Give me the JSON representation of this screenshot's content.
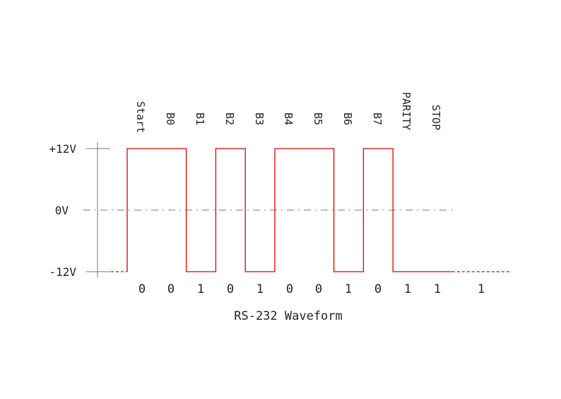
{
  "colors": {
    "signal": "#e00000",
    "axis": "#777777",
    "text": "#222222"
  },
  "diagram": {
    "caption": "RS-232 Waveform",
    "y_levels": [
      "+12V",
      "0V",
      "-12V"
    ],
    "frame_labels": [
      "Start",
      "B0",
      "B1",
      "B2",
      "B3",
      "B4",
      "B5",
      "B6",
      "B7",
      "PARITY",
      "STOP"
    ],
    "bit_values": [
      "0",
      "0",
      "1",
      "0",
      "1",
      "0",
      "0",
      "1",
      "0",
      "1",
      "1"
    ],
    "idle_value": "1",
    "line_levels": [
      "+12V",
      "+12V",
      "-12V",
      "+12V",
      "-12V",
      "+12V",
      "+12V",
      "-12V",
      "+12V",
      "-12V",
      "-12V"
    ]
  }
}
